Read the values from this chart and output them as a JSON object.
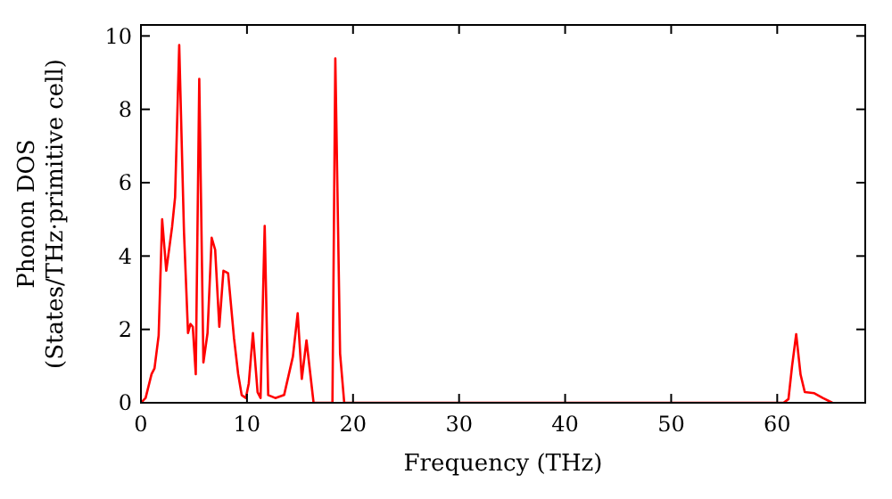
{
  "chart_data": {
    "type": "line",
    "xlabel": "Frequency (THz)",
    "ylabel": "Phonon DOS\n(States/THz·primitive cell)",
    "xlim": [
      0,
      68.3
    ],
    "ylim": [
      0,
      10.3
    ],
    "xticks": [
      0,
      10,
      20,
      30,
      40,
      50,
      60
    ],
    "yticks": [
      0,
      2,
      4,
      6,
      8,
      10
    ],
    "grid": false,
    "series": [
      {
        "color": "#ff0000",
        "x": [
          0,
          0.44,
          1.0,
          1.28,
          1.67,
          2.0,
          2.39,
          2.94,
          3.22,
          3.61,
          4.06,
          4.44,
          4.67,
          4.89,
          5.17,
          5.5,
          5.89,
          6.28,
          6.67,
          7.0,
          7.39,
          7.78,
          8.22,
          8.78,
          9.17,
          9.5,
          9.89,
          10.17,
          10.56,
          11.0,
          11.28,
          11.67,
          12.0,
          12.67,
          13.5,
          14.33,
          14.78,
          15.17,
          15.61,
          16.28,
          18.06,
          18.33,
          18.78,
          19.17,
          60.6,
          61.06,
          61.4,
          61.79,
          62.2,
          62.6,
          63.5,
          64.3,
          65.2
        ],
        "values": [
          0,
          0.13,
          0.78,
          0.94,
          1.83,
          5.0,
          3.6,
          4.8,
          5.6,
          9.75,
          4.66,
          1.9,
          2.15,
          2.07,
          0.78,
          8.83,
          1.1,
          1.9,
          4.5,
          4.17,
          2.07,
          3.6,
          3.53,
          1.75,
          0.78,
          0.21,
          0.13,
          0.53,
          1.9,
          0.29,
          0.13,
          4.82,
          0.21,
          0.13,
          0.21,
          1.26,
          2.44,
          0.65,
          1.7,
          0,
          0,
          9.39,
          1.34,
          0,
          0,
          0.1,
          1.0,
          1.87,
          0.77,
          0.29,
          0.26,
          0.13,
          0
        ]
      }
    ]
  }
}
